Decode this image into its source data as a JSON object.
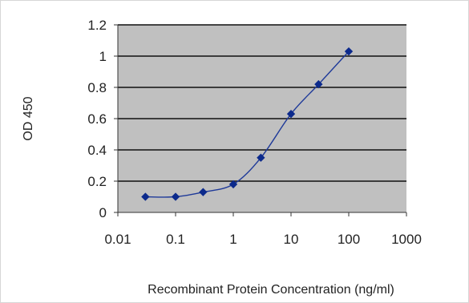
{
  "chart_data": {
    "type": "line",
    "xscale": "log",
    "xlabel": "Recombinant Protein Concentration (ng/ml)",
    "ylabel": "OD 450",
    "xlim": [
      0.01,
      1000
    ],
    "ylim": [
      0,
      1.2
    ],
    "xticks": [
      "0.01",
      "0.1",
      "1",
      "10",
      "100",
      "1000"
    ],
    "yticks": [
      "0",
      "0.2",
      "0.4",
      "0.6",
      "0.8",
      "1",
      "1.2"
    ],
    "grid": "horizontal",
    "series": [
      {
        "x": [
          0.03,
          0.1,
          0.3,
          1,
          3,
          10,
          30,
          100
        ],
        "y": [
          0.1,
          0.1,
          0.13,
          0.18,
          0.35,
          0.63,
          0.82,
          1.03
        ]
      }
    ],
    "colors": {
      "plot_background": "#c0c0c0",
      "series": "#1f3a99",
      "marker": "#0c2a8c"
    }
  }
}
